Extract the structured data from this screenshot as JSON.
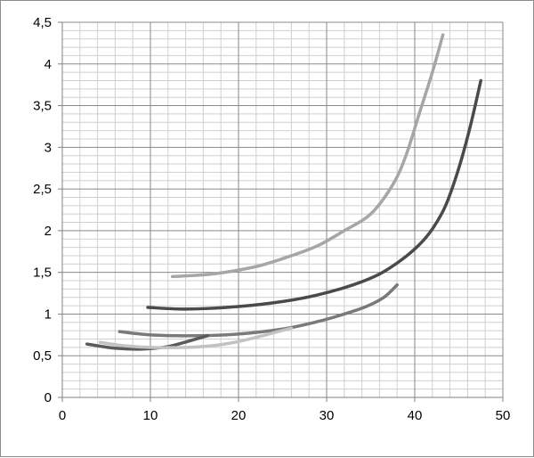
{
  "chart_data": {
    "type": "line",
    "title": "",
    "xlabel": "",
    "ylabel": "",
    "xlim": [
      0,
      50
    ],
    "ylim": [
      0,
      4.5
    ],
    "x_ticks": [
      "0",
      "10",
      "20",
      "30",
      "40",
      "50"
    ],
    "y_ticks": [
      "0",
      "0,5",
      "1",
      "1,5",
      "2",
      "2,5",
      "3",
      "3,5",
      "4",
      "4,5"
    ],
    "grid": {
      "x_major": 10,
      "x_minor": 2,
      "y_major": 0.5,
      "y_minor": 0.1
    },
    "legend": "none",
    "series": [
      {
        "color": "#a6a6a6",
        "points": [
          [
            12.5,
            1.45
          ],
          [
            17,
            1.48
          ],
          [
            22,
            1.57
          ],
          [
            26,
            1.7
          ],
          [
            29,
            1.82
          ],
          [
            32,
            2.0
          ],
          [
            35,
            2.2
          ],
          [
            37.5,
            2.55
          ],
          [
            39,
            2.9
          ],
          [
            40.5,
            3.4
          ],
          [
            42,
            3.9
          ],
          [
            43.2,
            4.35
          ]
        ]
      },
      {
        "color": "#4a4a4a",
        "points": [
          [
            9.7,
            1.08
          ],
          [
            14,
            1.06
          ],
          [
            20,
            1.09
          ],
          [
            25,
            1.15
          ],
          [
            29,
            1.23
          ],
          [
            33,
            1.35
          ],
          [
            36,
            1.48
          ],
          [
            38.5,
            1.65
          ],
          [
            40.5,
            1.83
          ],
          [
            42,
            2.02
          ],
          [
            43.5,
            2.3
          ],
          [
            45,
            2.75
          ],
          [
            46.3,
            3.25
          ],
          [
            47.5,
            3.8
          ]
        ]
      },
      {
        "color": "#7a7a7a",
        "points": [
          [
            6.5,
            0.79
          ],
          [
            10,
            0.75
          ],
          [
            15,
            0.74
          ],
          [
            20,
            0.76
          ],
          [
            25,
            0.82
          ],
          [
            29,
            0.91
          ],
          [
            32,
            1.0
          ],
          [
            34.5,
            1.09
          ],
          [
            36.5,
            1.2
          ],
          [
            38,
            1.35
          ]
        ]
      },
      {
        "color": "#5a5a5a",
        "points": [
          [
            2.8,
            0.64
          ],
          [
            6,
            0.59
          ],
          [
            9,
            0.58
          ],
          [
            12,
            0.61
          ],
          [
            14.5,
            0.68
          ],
          [
            16.5,
            0.74
          ]
        ]
      },
      {
        "color": "#c2c2c2",
        "points": [
          [
            4.3,
            0.66
          ],
          [
            7,
            0.62
          ],
          [
            10,
            0.6
          ],
          [
            14,
            0.6
          ],
          [
            17,
            0.62
          ],
          [
            19.5,
            0.66
          ],
          [
            22,
            0.72
          ],
          [
            24.5,
            0.79
          ],
          [
            26,
            0.83
          ]
        ]
      }
    ]
  }
}
